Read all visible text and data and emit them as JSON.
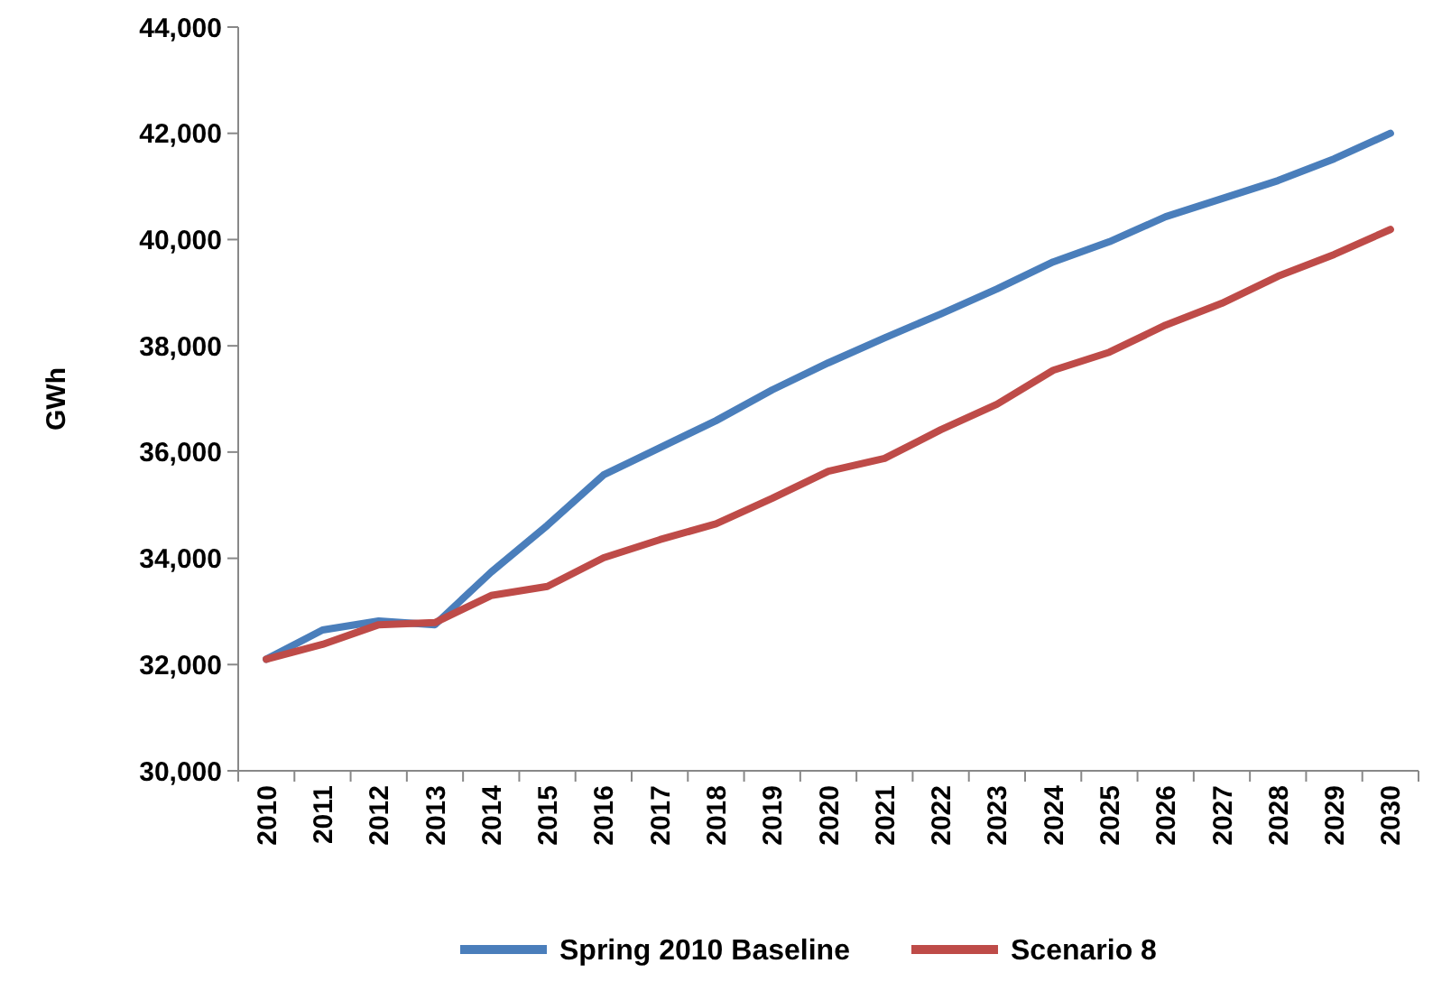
{
  "chart_data": {
    "type": "line",
    "ylabel": "GWh",
    "categories": [
      "2010",
      "2011",
      "2012",
      "2013",
      "2014",
      "2015",
      "2016",
      "2017",
      "2018",
      "2019",
      "2020",
      "2021",
      "2022",
      "2023",
      "2024",
      "2025",
      "2026",
      "2027",
      "2028",
      "2029",
      "2030"
    ],
    "series": [
      {
        "name": "Spring 2010 Baseline",
        "color": "#4a7ebb",
        "values": [
          32100,
          32650,
          32820,
          32750,
          33740,
          34620,
          35570,
          36080,
          36590,
          37170,
          37680,
          38150,
          38600,
          39070,
          39580,
          39960,
          40430,
          40770,
          41110,
          41520,
          42000
        ]
      },
      {
        "name": "Scenario 8",
        "color": "#be4b48",
        "values": [
          32100,
          32380,
          32750,
          32790,
          33300,
          33470,
          34010,
          34350,
          34650,
          35130,
          35640,
          35880,
          36420,
          36900,
          37540,
          37880,
          38390,
          38800,
          39310,
          39720,
          40190
        ]
      }
    ],
    "ylim": [
      30000,
      44000
    ],
    "yticks": [
      {
        "value": 30000,
        "label": "30,000"
      },
      {
        "value": 32000,
        "label": "32,000"
      },
      {
        "value": 34000,
        "label": "34,000"
      },
      {
        "value": 36000,
        "label": "36,000"
      },
      {
        "value": 38000,
        "label": "38,000"
      },
      {
        "value": 40000,
        "label": "40,000"
      },
      {
        "value": 42000,
        "label": "42,000"
      },
      {
        "value": 44000,
        "label": "44,000"
      }
    ],
    "legend": "bottom",
    "marker": "none",
    "line_style": "solid"
  }
}
